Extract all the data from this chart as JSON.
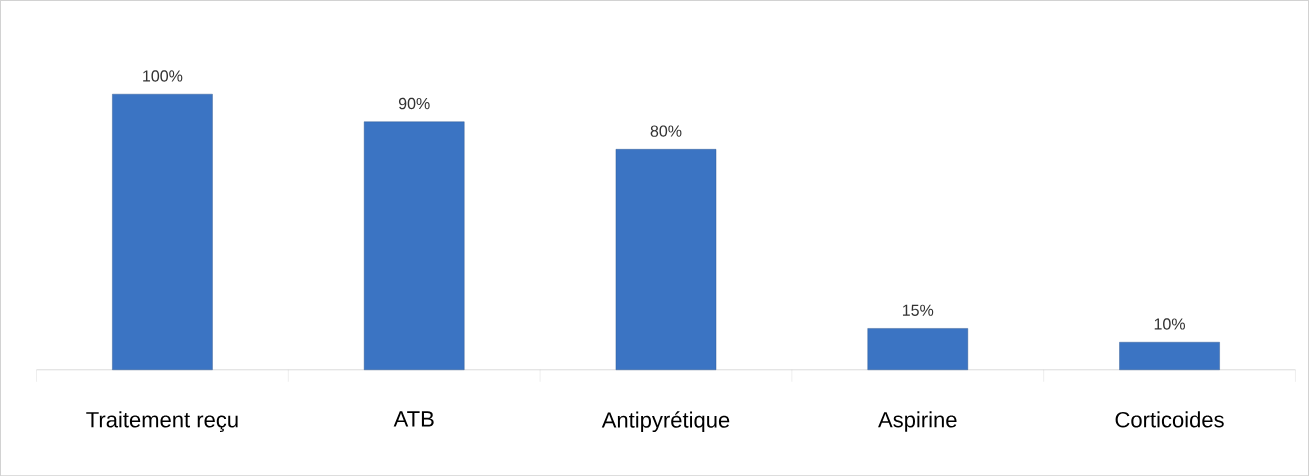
{
  "chart_data": {
    "type": "bar",
    "categories": [
      "Traitement reçu",
      "ATB",
      "Antipyrétique",
      "Aspirine",
      "Corticoides"
    ],
    "values": [
      100,
      90,
      80,
      15,
      10
    ],
    "value_labels": [
      "100%",
      "90%",
      "80%",
      "15%",
      "10%"
    ],
    "color": "#3b74c3"
  }
}
